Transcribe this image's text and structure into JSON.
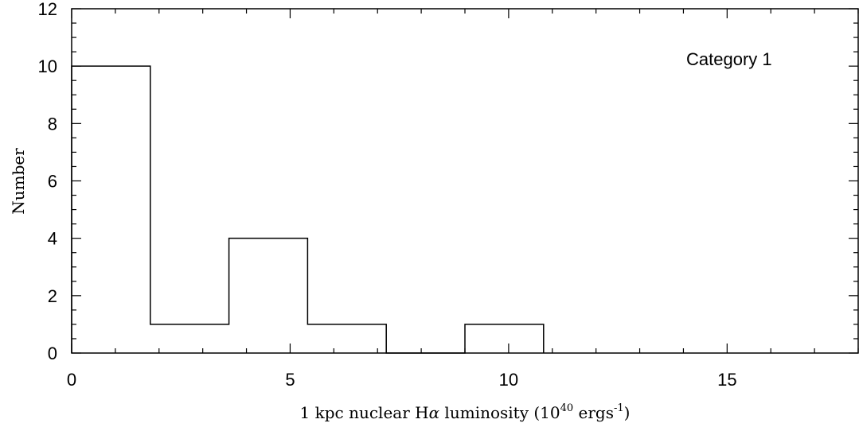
{
  "chart_data": {
    "type": "bar",
    "bins": [
      {
        "x0": 0.0,
        "x1": 1.8,
        "count": 10
      },
      {
        "x0": 1.8,
        "x1": 3.6,
        "count": 1
      },
      {
        "x0": 3.6,
        "x1": 5.4,
        "count": 4
      },
      {
        "x0": 5.4,
        "x1": 7.2,
        "count": 1
      },
      {
        "x0": 7.2,
        "x1": 9.0,
        "count": 0
      },
      {
        "x0": 9.0,
        "x1": 10.8,
        "count": 1
      }
    ],
    "xlim": [
      0,
      18
    ],
    "ylim": [
      0,
      12
    ],
    "xticks": [
      "0",
      "5",
      "10",
      "15"
    ],
    "yticks": [
      "0",
      "2",
      "4",
      "6",
      "8",
      "10",
      "12"
    ],
    "xlabel": {
      "prefix": "1 kpc nuclear H",
      "alpha": "α",
      "middle": " luminosity (10",
      "exp1": "40",
      "unit": " ergs",
      "exp2": "-1",
      "close": ")"
    },
    "ylabel": "Number",
    "annotation": "Category 1",
    "grid": false
  }
}
